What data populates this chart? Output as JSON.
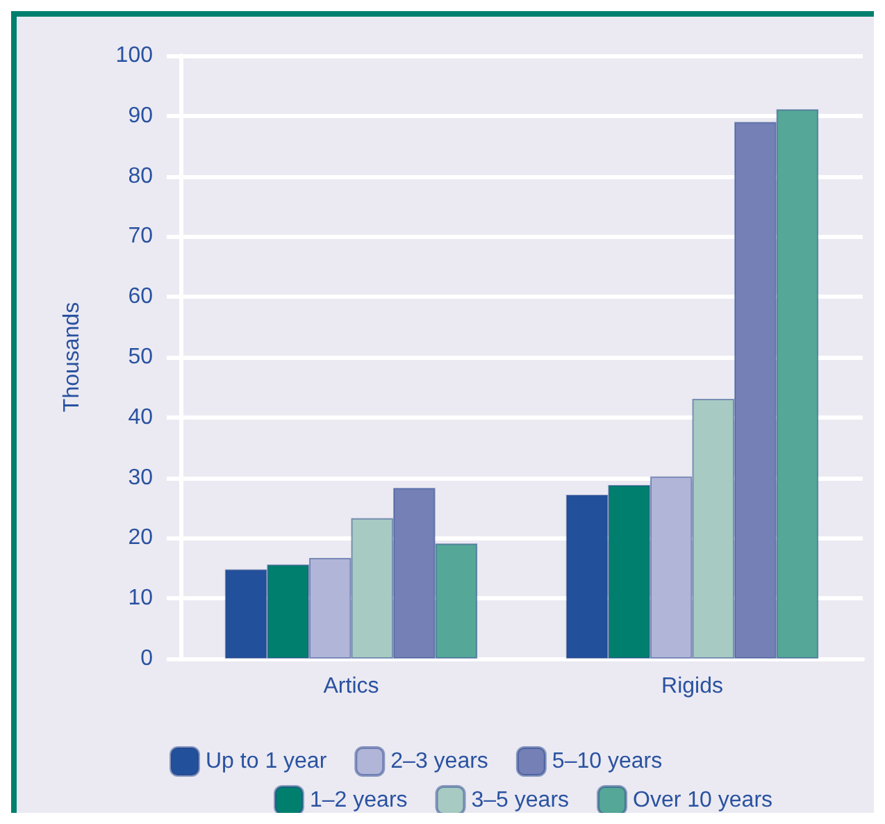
{
  "chart_data": {
    "type": "bar",
    "ylabel": "Thousands",
    "categories": [
      "Artics",
      "Rigids"
    ],
    "series": [
      {
        "name": "Up to 1 year",
        "color": "#22509a",
        "values": [
          14.8,
          27.2
        ]
      },
      {
        "name": "1–2 years",
        "color": "#007f6e",
        "values": [
          15.6,
          28.8
        ]
      },
      {
        "name": "2–3 years",
        "color": "#b1b5d8",
        "values": [
          16.7,
          30.2
        ]
      },
      {
        "name": "3–5 years",
        "color": "#a7cac3",
        "values": [
          23.3,
          43.1
        ]
      },
      {
        "name": "5–10 years",
        "color": "#7480b6",
        "values": [
          28.3,
          89.0
        ]
      },
      {
        "name": "Over 10 years",
        "color": "#55a797",
        "values": [
          19.1,
          91.1
        ]
      }
    ],
    "ylim": [
      0,
      100
    ],
    "yticks": [
      0,
      10,
      20,
      30,
      40,
      50,
      60,
      70,
      80,
      90,
      100
    ],
    "grid": "y",
    "legend": "bottom"
  }
}
